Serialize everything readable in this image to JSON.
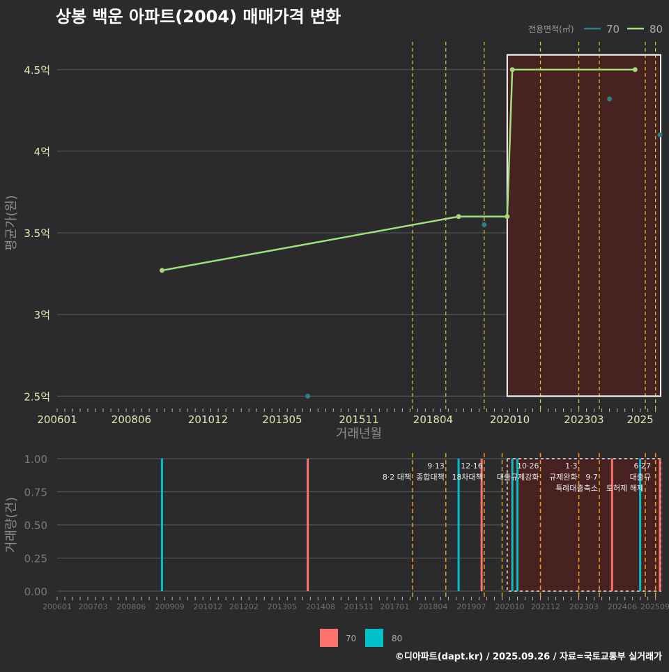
{
  "title": "상봉 백운 아파트(2004) 매매가격 변화",
  "footer": "©디아파트(dapt.kr) / 2025.09.26 / 자료=국토교통부 실거래가",
  "colors": {
    "background": "#2b2b2d",
    "series_70": "#2e7f86",
    "series_80": "#9ee07e",
    "volume_70": "#ff716b",
    "volume_80": "#00c0c8",
    "policy_line": "#e5c722",
    "policy_line_bottom": "#e6a31c",
    "highlight_fill": "#4a2121",
    "grid": "#5c5c5e",
    "axis_text": "#e3e3b0"
  },
  "chart_data": [
    {
      "type": "line",
      "xlabel": "거래년월",
      "ylabel": "평균가(원)",
      "ylim": [
        2.45,
        4.67
      ],
      "xlim": [
        "2006-01",
        "2025-09"
      ],
      "yticks": [
        {
          "value": 2.5,
          "label": "2.5억"
        },
        {
          "value": 3.0,
          "label": "3억"
        },
        {
          "value": 3.5,
          "label": "3.5억"
        },
        {
          "value": 4.0,
          "label": "4억"
        },
        {
          "value": 4.5,
          "label": "4.5억"
        }
      ],
      "xticks": [
        "200601",
        "200806",
        "201012",
        "201305",
        "201511",
        "201804",
        "202010",
        "202303",
        "2025"
      ],
      "legend": {
        "title": "전용면적(㎡)",
        "entries": [
          "70",
          "80"
        ],
        "position": "top-right"
      },
      "series": [
        {
          "name": "80",
          "x": [
            "2009-06",
            "2019-02",
            "2020-09",
            "2020-11",
            "2024-11"
          ],
          "values": [
            3.27,
            3.6,
            3.6,
            4.5,
            4.5
          ]
        },
        {
          "name": "70",
          "x": [
            "2014-03",
            "2019-12",
            "2024-01",
            "2025-09"
          ],
          "values": [
            2.5,
            3.55,
            4.32,
            4.1
          ]
        }
      ],
      "policy_lines": [
        "2017-08",
        "2018-09",
        "2019-12",
        "2021-10",
        "2023-01",
        "2023-09",
        "2025-03",
        "2025-07"
      ],
      "highlight": {
        "from": "2020-09",
        "to": "2025-09",
        "ymin": 2.5,
        "ymax": 4.59
      }
    },
    {
      "type": "bar",
      "xlabel": "",
      "ylabel": "거래량(건)",
      "ylim": [
        0,
        1
      ],
      "yticks": [
        "0.00",
        "0.25",
        "0.50",
        "0.75",
        "1.00"
      ],
      "xticks": [
        "200601",
        "200703",
        "200806",
        "200909",
        "201012",
        "201202",
        "201305",
        "201408",
        "201511",
        "201701",
        "201804",
        "201907",
        "202010",
        "202112",
        "202303",
        "202406",
        "202509"
      ],
      "legend": {
        "entries": [
          "70",
          "80"
        ],
        "position": "bottom"
      },
      "series": [
        {
          "name": "70",
          "x": [
            "2014-03",
            "2019-11",
            "2024-02",
            "2025-09"
          ],
          "values": [
            1,
            1,
            1,
            1
          ]
        },
        {
          "name": "80",
          "x": [
            "2009-06",
            "2019-02",
            "2020-11",
            "2021-01",
            "2025-01"
          ],
          "values": [
            1,
            1,
            1,
            1,
            1
          ]
        }
      ],
      "policy_lines": [
        "2017-08",
        "2018-09",
        "2019-12",
        "2020-07",
        "2021-10",
        "2023-01",
        "2023-09",
        "2025-03",
        "2025-07"
      ],
      "annotations": [
        {
          "x": "2017-08",
          "text": "8·2 대책",
          "row": 1
        },
        {
          "x": "2018-09",
          "text": "9·13",
          "row": 0
        },
        {
          "x": "2018-09",
          "text": "종합대책",
          "row": 1
        },
        {
          "x": "2019-12",
          "text": "12·16",
          "row": 0
        },
        {
          "x": "2019-12",
          "text": "18차대책",
          "row": 1
        },
        {
          "x": "2021-10",
          "text": "10·26",
          "row": 0
        },
        {
          "x": "2021-10",
          "text": "대출규제강화",
          "row": 1
        },
        {
          "x": "2023-01",
          "text": "1·3",
          "row": 0
        },
        {
          "x": "2023-01",
          "text": "규제완화",
          "row": 1
        },
        {
          "x": "2023-09",
          "text": "9·7",
          "row": 1
        },
        {
          "x": "2023-09",
          "text": "특례대출축소",
          "row": 2
        },
        {
          "x": "2025-03",
          "text": "토허제 해제",
          "row": 2
        },
        {
          "x": "2025-07",
          "text": "6·27",
          "row": 0
        },
        {
          "x": "2025-07",
          "text": "대출규",
          "row": 1
        }
      ],
      "highlight": {
        "from": "2020-09",
        "to": "2025-09"
      }
    }
  ]
}
